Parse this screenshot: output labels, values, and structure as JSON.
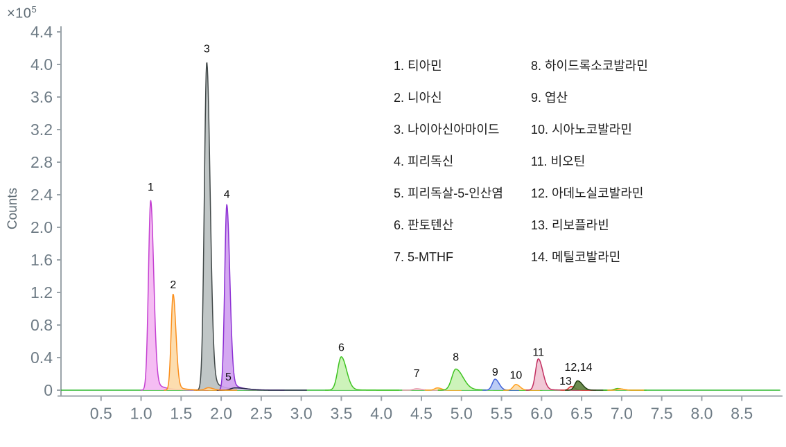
{
  "chart_data": {
    "type": "area",
    "subtype": "chromatogram",
    "title": "",
    "xlabel": "",
    "ylabel": "Counts",
    "y_unit_multiplier": {
      "base": "×10",
      "exponent": "5"
    },
    "xlim": [
      0,
      9.0
    ],
    "ylim": [
      0,
      4.45
    ],
    "grid": false,
    "x_ticks": [
      0.5,
      1.0,
      1.5,
      2.0,
      2.5,
      3.0,
      3.5,
      4.0,
      4.5,
      5.0,
      5.5,
      6.0,
      6.5,
      7.0,
      7.5,
      8.0,
      8.5
    ],
    "y_ticks": [
      0,
      0.4,
      0.8,
      1.2,
      1.6,
      2.0,
      2.4,
      2.8,
      3.2,
      3.6,
      4.0,
      4.4
    ],
    "axis_color": "#9aa3a9",
    "tick_label_color": "#6e7b85",
    "baseline": {
      "color": "#2eb82e",
      "x_start": 0.0,
      "x_end": 8.98
    },
    "peaks": [
      {
        "num": "1",
        "name": "티아민",
        "rt": 1.12,
        "height": 2.33,
        "sigma_l": 0.028,
        "sigma_r": 0.038,
        "tail_frac": 0.06,
        "tail_tau": 0.12,
        "stroke": "#c43fd1",
        "fill": "#f4b6f2"
      },
      {
        "num": "2",
        "name": "니아신",
        "rt": 1.4,
        "height": 1.18,
        "sigma_l": 0.025,
        "sigma_r": 0.035,
        "tail_frac": 0.06,
        "tail_tau": 0.1,
        "stroke": "#fb8e1b",
        "fill": "#fcd9a6"
      },
      {
        "num": "3",
        "name": "나이아신아마이드",
        "rt": 1.82,
        "height": 4.03,
        "sigma_l": 0.03,
        "sigma_r": 0.042,
        "tail_frac": 0.05,
        "tail_tau": 0.13,
        "stroke": "#414848",
        "fill": "#b9c0c0"
      },
      {
        "num": "4",
        "name": "피리독신",
        "rt": 2.07,
        "height": 2.28,
        "sigma_l": 0.026,
        "sigma_r": 0.038,
        "tail_frac": 0.06,
        "tail_tau": 0.12,
        "stroke": "#8c2fd4",
        "fill": "#cf9ef0"
      },
      {
        "num": "5",
        "name": "피리독살-5-인산염",
        "rt": 2.17,
        "height": 0.028,
        "sigma_l": 0.05,
        "sigma_r": 0.15,
        "tail_frac": 0,
        "tail_tau": 0,
        "stroke": "#25254a",
        "fill": "#c9c9da"
      },
      {
        "num": "",
        "name": "",
        "rt": 1.84,
        "height": 0.03,
        "sigma_l": 0.04,
        "sigma_r": 0.06,
        "tail_frac": 0,
        "tail_tau": 0,
        "stroke": "#fb8e1b",
        "fill": "#fcd9a6"
      },
      {
        "num": "6",
        "name": "판토텐산",
        "rt": 3.5,
        "height": 0.41,
        "sigma_l": 0.045,
        "sigma_r": 0.065,
        "tail_frac": 0.05,
        "tail_tau": 0.12,
        "stroke": "#3ec321",
        "fill": "#c8f2b2"
      },
      {
        "num": "7",
        "name": "5-MTHF",
        "rt": 4.44,
        "height": 0.018,
        "sigma_l": 0.04,
        "sigma_r": 0.06,
        "tail_frac": 0,
        "tail_tau": 0,
        "stroke": "#e89cae",
        "fill": "#f6d3dc"
      },
      {
        "num": "",
        "name": "",
        "rt": 4.7,
        "height": 0.028,
        "sigma_l": 0.035,
        "sigma_r": 0.05,
        "tail_frac": 0,
        "tail_tau": 0,
        "stroke": "#ffa11f",
        "fill": "#fcd9a6"
      },
      {
        "num": "8",
        "name": "하이드록소코발라민",
        "rt": 4.93,
        "height": 0.26,
        "sigma_l": 0.05,
        "sigma_r": 0.09,
        "tail_frac": 0.08,
        "tail_tau": 0.18,
        "stroke": "#3ec321",
        "fill": "#c8f2b2"
      },
      {
        "num": "9",
        "name": "엽산",
        "rt": 5.42,
        "height": 0.135,
        "sigma_l": 0.035,
        "sigma_r": 0.05,
        "tail_frac": 0,
        "tail_tau": 0,
        "stroke": "#3f62d9",
        "fill": "#b5c7f4"
      },
      {
        "num": "10",
        "name": "시아노코발라민",
        "rt": 5.68,
        "height": 0.07,
        "sigma_l": 0.035,
        "sigma_r": 0.05,
        "tail_frac": 0,
        "tail_tau": 0,
        "stroke": "#ffa11f",
        "fill": "#fcd9a6"
      },
      {
        "num": "11",
        "name": "비오틴",
        "rt": 5.96,
        "height": 0.385,
        "sigma_l": 0.035,
        "sigma_r": 0.055,
        "tail_frac": 0.05,
        "tail_tau": 0.12,
        "stroke": "#c22e60",
        "fill": "#f0c2d2"
      },
      {
        "num": "13",
        "name": "리보플라빈",
        "rt": 6.37,
        "height": 0.045,
        "sigma_l": 0.03,
        "sigma_r": 0.045,
        "tail_frac": 0,
        "tail_tau": 0,
        "stroke": "#e23434",
        "fill": "#f6caca"
      },
      {
        "num": "12,14",
        "name": "아데노실코발라민, 메틸코발라민",
        "rt": 6.45,
        "height": 0.115,
        "sigma_l": 0.035,
        "sigma_r": 0.06,
        "tail_frac": 0,
        "tail_tau": 0,
        "stroke": "#233f12",
        "fill": "#5c7f3c"
      },
      {
        "num": "",
        "name": "",
        "rt": 6.95,
        "height": 0.02,
        "sigma_l": 0.04,
        "sigma_r": 0.06,
        "tail_frac": 0,
        "tail_tau": 0,
        "stroke": "#3ec321",
        "fill": "#c8f2b2"
      },
      {
        "num": "",
        "name": "",
        "rt": 6.98,
        "height": 0.016,
        "sigma_l": 0.035,
        "sigma_r": 0.05,
        "tail_frac": 0,
        "tail_tau": 0,
        "stroke": "#ffa11f",
        "fill": "#fcd9a6"
      }
    ],
    "peak_labels": [
      {
        "text": "1",
        "x": 1.12,
        "y": 2.45
      },
      {
        "text": "2",
        "x": 1.4,
        "y": 1.25
      },
      {
        "text": "3",
        "x": 1.82,
        "y": 4.15
      },
      {
        "text": "4",
        "x": 2.07,
        "y": 2.36
      },
      {
        "text": "5",
        "x": 2.09,
        "y": 0.12
      },
      {
        "text": "6",
        "x": 3.5,
        "y": 0.48
      },
      {
        "text": "7",
        "x": 4.44,
        "y": 0.16
      },
      {
        "text": "8",
        "x": 4.93,
        "y": 0.36
      },
      {
        "text": "9",
        "x": 5.42,
        "y": 0.18
      },
      {
        "text": "10",
        "x": 5.68,
        "y": 0.14
      },
      {
        "text": "11",
        "x": 5.96,
        "y": 0.42
      },
      {
        "text": "12,14",
        "x": 6.46,
        "y": 0.24
      },
      {
        "text": "13",
        "x": 6.3,
        "y": 0.07
      }
    ],
    "legend": {
      "col1": [
        "1. 티아민",
        "2. 니아신",
        "3. 나이아신아마이드",
        "4. 피리독신",
        "5. 피리독살-5-인산염",
        "6. 판토텐산",
        "7. 5-MTHF"
      ],
      "col2": [
        "8. 하이드록소코발라민",
        "9. 엽산",
        "10. 시아노코발라민",
        "11. 비오틴",
        "12. 아데노실코발라민",
        "13. 리보플라빈",
        "14. 메틸코발라민"
      ]
    }
  }
}
